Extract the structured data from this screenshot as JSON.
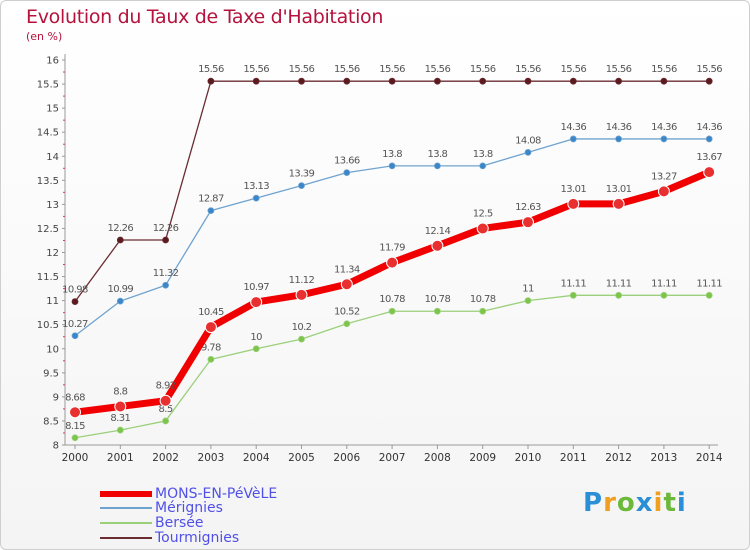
{
  "title": "Evolution du Taux de Taxe d'Habitation",
  "subtitle": "(en %)",
  "logo": {
    "letters": [
      "P",
      "r",
      "o",
      "x",
      "i",
      "t",
      "i"
    ],
    "colors": [
      "#2a8fd6",
      "#f0a020",
      "#6cb83a",
      "#2a8fd6",
      "#f0a020",
      "#6cb83a",
      "#2a8fd6"
    ]
  },
  "chart_data": {
    "type": "line",
    "title": "Evolution du Taux de Taxe d'Habitation",
    "ylabel": "(en %)",
    "xlabel": "",
    "ylim": [
      8,
      16
    ],
    "yticks": [
      8,
      8.5,
      9,
      9.5,
      10,
      10.5,
      11,
      11.5,
      12,
      12.5,
      13,
      13.5,
      14,
      14.5,
      15,
      15.5,
      16
    ],
    "ytick_labels": [
      "8",
      "8.5",
      "9",
      "9.5",
      "10",
      "10.5",
      "11",
      "11.5",
      "12",
      "12.5",
      "13",
      "13.5",
      "14",
      "14.5",
      "15",
      "15.5",
      "16"
    ],
    "categories": [
      "2000",
      "2001",
      "2002",
      "2003",
      "2004",
      "2005",
      "2006",
      "2007",
      "2008",
      "2009",
      "2010",
      "2011",
      "2012",
      "2013",
      "2014"
    ],
    "grid": false,
    "legend_position": "bottom-left",
    "series": [
      {
        "name": "Tourmignies",
        "color": "#6b2c32",
        "dot": "#5a1a1e",
        "width": 1.3,
        "values": [
          10.98,
          12.26,
          12.26,
          15.56,
          15.56,
          15.56,
          15.56,
          15.56,
          15.56,
          15.56,
          15.56,
          15.56,
          15.56,
          15.56,
          15.56
        ],
        "labels": [
          "10.98",
          "12.26",
          "12.26",
          "15.56",
          "15.56",
          "15.56",
          "15.56",
          "15.56",
          "15.56",
          "15.56",
          "15.56",
          "15.56",
          "15.56",
          "15.56",
          "15.56"
        ]
      },
      {
        "name": "Mérignies",
        "color": "#6fa3cf",
        "dot": "#3a86c8",
        "width": 1.3,
        "values": [
          10.27,
          10.99,
          11.32,
          12.87,
          13.13,
          13.39,
          13.66,
          13.8,
          13.8,
          13.8,
          14.08,
          14.36,
          14.36,
          14.36,
          14.36
        ],
        "labels": [
          "10.27",
          "10.99",
          "11.32",
          "12.87",
          "13.13",
          "13.39",
          "13.66",
          "13.8",
          "13.8",
          "13.8",
          "14.08",
          "14.36",
          "14.36",
          "14.36",
          "14.36"
        ]
      },
      {
        "name": "Bersée",
        "color": "#9ad07a",
        "dot": "#7cc44a",
        "width": 1.3,
        "values": [
          8.15,
          8.31,
          8.5,
          9.78,
          10,
          10.2,
          10.52,
          10.78,
          10.78,
          10.78,
          11,
          11.11,
          11.11,
          11.11,
          11.11
        ],
        "labels": [
          "8.15",
          "8.31",
          "8.5",
          "9.78",
          "10",
          "10.2",
          "10.52",
          "10.78",
          "10.78",
          "10.78",
          "11",
          "11.11",
          "11.11",
          "11.11",
          "11.11"
        ]
      },
      {
        "name": "MONS-EN-PéVèLE",
        "color": "#f00000",
        "dot": "#e83030",
        "width": 7,
        "values": [
          8.68,
          8.8,
          8.92,
          10.45,
          10.97,
          11.12,
          11.34,
          11.79,
          12.14,
          12.5,
          12.63,
          13.01,
          13.01,
          13.27,
          13.67
        ],
        "labels": [
          "8.68",
          "8.8",
          "8.92",
          "10.45",
          "10.97",
          "11.12",
          "11.34",
          "11.79",
          "12.14",
          "12.5",
          "12.63",
          "13.01",
          "13.01",
          "13.27",
          "13.67"
        ]
      }
    ]
  },
  "legend": [
    {
      "label": "MONS-EN-PéVèLE",
      "color": "#f00000",
      "thick": true
    },
    {
      "label": "Mérignies",
      "color": "#6fa3cf",
      "thick": false
    },
    {
      "label": "Bersée",
      "color": "#9ad07a",
      "thick": false
    },
    {
      "label": "Tourmignies",
      "color": "#6b2c32",
      "thick": false
    }
  ]
}
